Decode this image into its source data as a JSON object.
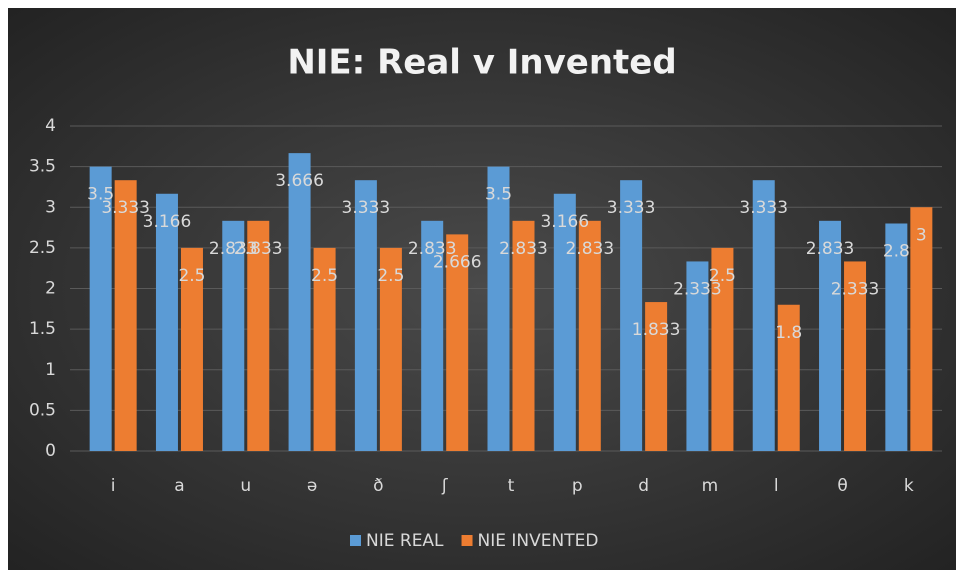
{
  "chart_data": {
    "type": "bar",
    "title": "NIE: Real v Invented",
    "categories": [
      "i",
      "a",
      "u",
      "ə",
      "ð",
      "ʃ",
      "t",
      "p",
      "d",
      "m",
      "l",
      "θ",
      "k"
    ],
    "series": [
      {
        "name": "NIE REAL",
        "color": "#5b9bd5",
        "values": [
          3.5,
          3.166,
          2.833,
          3.666,
          3.333,
          2.833,
          3.5,
          3.166,
          3.333,
          2.333,
          3.333,
          2.833,
          2.8
        ]
      },
      {
        "name": "NIE INVENTED",
        "color": "#ed7d31",
        "values": [
          3.333,
          2.5,
          2.833,
          2.5,
          2.5,
          2.666,
          2.833,
          2.833,
          1.833,
          2.5,
          1.8,
          2.333,
          3
        ]
      }
    ],
    "ylim": [
      0,
      4
    ],
    "yticks": [
      0,
      0.5,
      1,
      1.5,
      2,
      2.5,
      3,
      3.5,
      4
    ],
    "grid": true,
    "legend": "bottom"
  }
}
